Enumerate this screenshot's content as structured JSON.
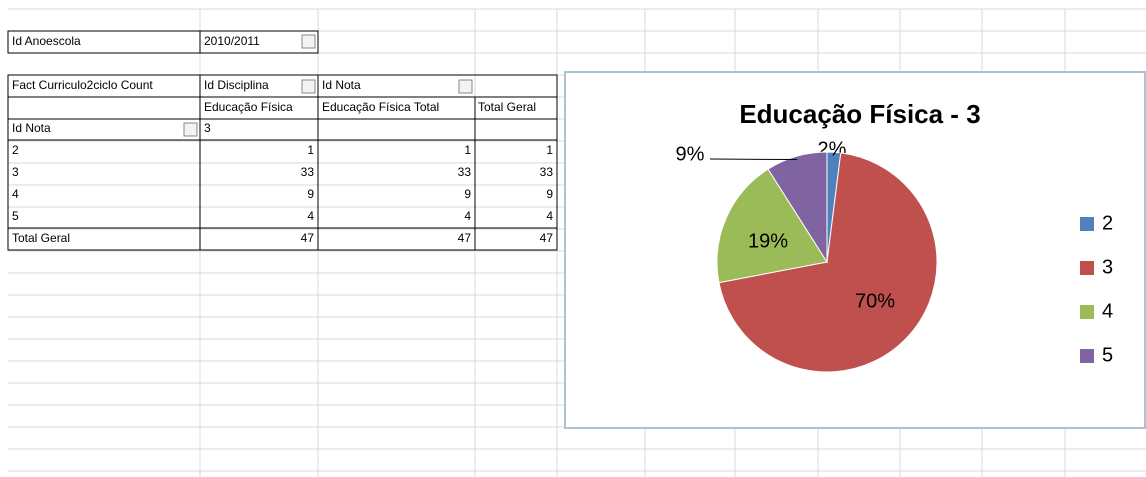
{
  "filter": {
    "label": "Id Anoescola",
    "value": "2010/2011"
  },
  "pivot": {
    "corner": "Fact Curriculo2ciclo Count",
    "column_field_1": "Id Disciplina",
    "column_field_2": "Id Nota",
    "column_headers": [
      "Educação Física",
      "Educação Física Total",
      "Total Geral"
    ],
    "row_field": "Id Nota",
    "column_item": "3",
    "rows": [
      {
        "label": "2",
        "values": [
          1,
          1,
          1
        ]
      },
      {
        "label": "3",
        "values": [
          33,
          33,
          33
        ]
      },
      {
        "label": "4",
        "values": [
          9,
          9,
          9
        ]
      },
      {
        "label": "5",
        "values": [
          4,
          4,
          4
        ]
      }
    ],
    "total": {
      "label": "Total Geral",
      "values": [
        47,
        47,
        47
      ]
    }
  },
  "chart_data": {
    "type": "pie",
    "title": "Educação Física - 3",
    "categories": [
      "2",
      "3",
      "4",
      "5"
    ],
    "values": [
      2,
      70,
      19,
      9
    ],
    "value_labels": [
      "2%",
      "70%",
      "19%",
      "9%"
    ],
    "colors": [
      "#4f81bd",
      "#c0504d",
      "#9bbb59",
      "#8064a2"
    ],
    "legend": "right"
  }
}
